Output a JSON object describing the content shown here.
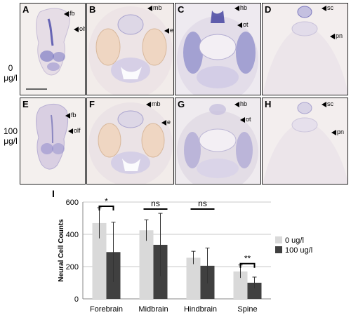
{
  "rows": [
    {
      "dose": "0",
      "unit": "μg/l"
    },
    {
      "dose": "100",
      "unit": "μg/l"
    }
  ],
  "panels": [
    {
      "letter": "A",
      "labels": [
        "fb",
        "olf"
      ]
    },
    {
      "letter": "B",
      "labels": [
        "mb",
        "e"
      ]
    },
    {
      "letter": "C",
      "labels": [
        "hb",
        "ot"
      ]
    },
    {
      "letter": "D",
      "labels": [
        "sc",
        "pn"
      ]
    },
    {
      "letter": "E",
      "labels": [
        "fb",
        "olf"
      ]
    },
    {
      "letter": "F",
      "labels": [
        "mb",
        "e"
      ]
    },
    {
      "letter": "G",
      "labels": [
        "hb",
        "ot"
      ]
    },
    {
      "letter": "H",
      "labels": [
        "sc",
        "pn"
      ]
    }
  ],
  "chart_panel_letter": "I",
  "colors": {
    "control": "#d9d9d9",
    "treated": "#404040",
    "stain": "#5b5bb0",
    "tissue": "#e8dfe4"
  },
  "chart_data": {
    "type": "bar",
    "categories": [
      "Forebrain",
      "Midbrain",
      "Hindbrain",
      "Spine"
    ],
    "series": [
      {
        "name": "0 ug/l",
        "values": [
          470,
          425,
          255,
          170
        ],
        "errors": [
          95,
          65,
          40,
          40
        ]
      },
      {
        "name": "100 ug/l",
        "values": [
          290,
          335,
          205,
          100
        ],
        "errors": [
          185,
          195,
          110,
          35
        ]
      }
    ],
    "ylabel": "Neural Cell Counts",
    "xlabel": "",
    "ylim": [
      0,
      600
    ],
    "yticks": [
      0,
      200,
      400,
      600
    ],
    "grid": true,
    "legend": "right",
    "significance": [
      {
        "category": "Forebrain",
        "label": "*"
      },
      {
        "category": "Midbrain",
        "label": "ns"
      },
      {
        "category": "Hindbrain",
        "label": "ns"
      },
      {
        "category": "Spine",
        "label": "**"
      }
    ]
  }
}
